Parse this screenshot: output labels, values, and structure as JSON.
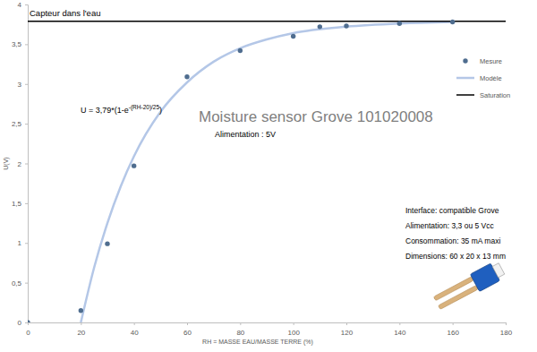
{
  "chart_data": {
    "type": "scatter",
    "title": "Moisture sensor Grove 101020008",
    "x_label": "RH = MASSE EAU/MASSE TERRE (%)",
    "y_label": "U(V)",
    "annotations": [
      "Capteur dans l'eau",
      "Alimentation : 5V",
      "Interface: compatible Grove",
      "Alimentation: 3,3 ou 5 Vcc",
      "Consommation: 35 mA maxi",
      "Dimensions: 60 x 20 x 13 mm"
    ],
    "formula": {
      "base": "U = 3,79*(1-e",
      "exponent": "-(RH-20)/25",
      "end": ")"
    },
    "xlim": [
      0,
      180
    ],
    "xticks": [
      0,
      20,
      40,
      60,
      80,
      100,
      120,
      140,
      160,
      180
    ],
    "ylim": [
      0,
      4
    ],
    "yticks": [
      0,
      {
        "value": 0.5,
        "label": "0,5"
      },
      1,
      {
        "value": 1.5,
        "label": "1,5"
      },
      2,
      {
        "value": 2.5,
        "label": "2,5"
      },
      3,
      {
        "value": 3.5,
        "label": "3,5"
      },
      4
    ],
    "grid": false,
    "legend": "upper right",
    "series": [
      {
        "name": "Mesure",
        "type": "scatter",
        "color": "#4f6d8f",
        "marker": "circle",
        "x": [
          0,
          20,
          30,
          40,
          60,
          80,
          100,
          110,
          120,
          140,
          160
        ],
        "values": [
          0,
          0.15,
          0.99,
          1.97,
          3.09,
          3.42,
          3.6,
          3.72,
          3.73,
          3.76,
          3.78
        ]
      },
      {
        "name": "Modèle",
        "type": "line",
        "color": "#b4c7e7",
        "line_style": "solid",
        "x": [
          20,
          25,
          30,
          35,
          40,
          50,
          60,
          70,
          80,
          90,
          100,
          120,
          140,
          160
        ],
        "values": [
          0,
          0.69,
          1.25,
          1.71,
          2.09,
          2.65,
          3.02,
          3.28,
          3.45,
          3.56,
          3.64,
          3.72,
          3.76,
          3.78
        ]
      },
      {
        "name": "Saturation",
        "type": "line",
        "color": "#000000",
        "line_style": "solid",
        "x": [
          0,
          180
        ],
        "values": [
          3.79,
          3.79
        ]
      }
    ]
  }
}
